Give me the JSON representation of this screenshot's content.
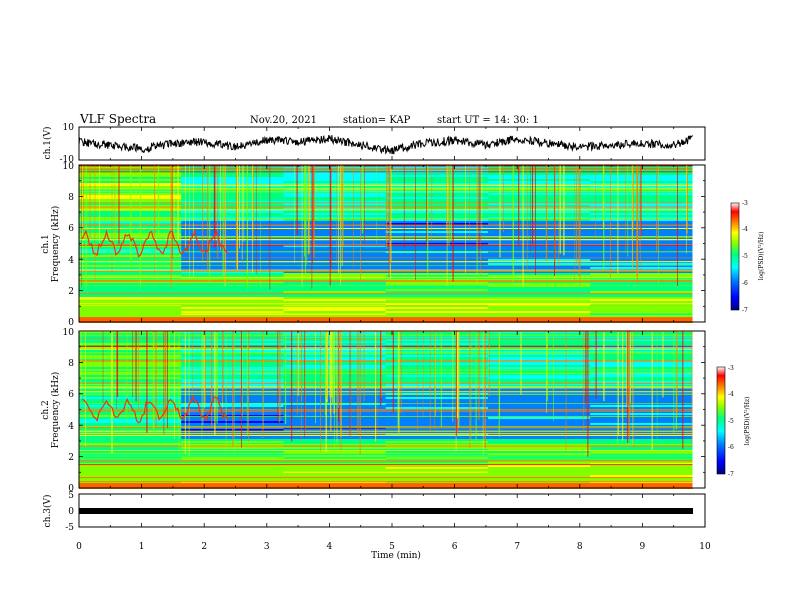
{
  "header": {
    "title": "VLF Spectra",
    "date": "Nov.20, 2021",
    "station": "station= KAP",
    "start_ut": "start  UT =   14: 30: 1"
  },
  "colors": {
    "colormap": [
      "#000080",
      "#0000ff",
      "#0080ff",
      "#00ffff",
      "#00ff80",
      "#80ff00",
      "#ffff00",
      "#ff8000",
      "#ff0000",
      "#ffffff"
    ],
    "trace": "#000000"
  },
  "chart_data": [
    {
      "type": "line",
      "name": "ch1-waveform",
      "ylabel": "ch.1(V)",
      "ylim": [
        -10,
        10
      ],
      "yticks": [
        "10",
        "-10"
      ],
      "xlim": [
        0,
        10
      ],
      "x": [
        0,
        0.5,
        1,
        1.5,
        2,
        2.5,
        3,
        3.5,
        4,
        4.5,
        5,
        5.5,
        6,
        6.5,
        7,
        7.5,
        8,
        8.5,
        9,
        9.5,
        9.8
      ],
      "values": [
        1,
        -1,
        -3,
        0,
        1,
        -2,
        2,
        1,
        3,
        -1,
        -4,
        0,
        2,
        -1,
        3,
        0,
        -2,
        -1,
        0,
        -1,
        3
      ]
    },
    {
      "type": "heatmap",
      "name": "ch1-spectrogram",
      "ylabel": "ch.1",
      "ylabel2": "Frequency (kHz)",
      "ylim": [
        0,
        10
      ],
      "yticks": [
        "0",
        "2",
        "4",
        "6",
        "8",
        "10"
      ],
      "xlim": [
        0,
        10
      ],
      "colorbar": {
        "label": "log(PSD)(V²/Hz)",
        "range": [
          -7,
          -3
        ],
        "ticks": [
          "-3",
          "-4",
          "-5",
          "-6",
          "-7"
        ]
      }
    },
    {
      "type": "heatmap",
      "name": "ch2-spectrogram",
      "ylabel": "ch.2",
      "ylabel2": "Frequency (kHz)",
      "ylim": [
        0,
        10
      ],
      "yticks": [
        "0",
        "2",
        "4",
        "6",
        "8",
        "10"
      ],
      "xlim": [
        0,
        10
      ],
      "colorbar": {
        "label": "log(PSD)(V²/Hz)",
        "range": [
          -7,
          -3
        ],
        "ticks": [
          "-3",
          "-4",
          "-5",
          "-6",
          "-7"
        ]
      }
    },
    {
      "type": "line",
      "name": "ch3-waveform",
      "ylabel": "ch.3(V)",
      "ylim": [
        -5,
        5
      ],
      "yticks": [
        "5",
        "0",
        "-5"
      ],
      "xlim": [
        0,
        10
      ],
      "x": [
        0,
        9.8
      ],
      "values": [
        0,
        0
      ]
    }
  ],
  "xaxis": {
    "label": "Time  (min)",
    "ticks": [
      "0",
      "1",
      "2",
      "3",
      "4",
      "5",
      "6",
      "7",
      "8",
      "9",
      "10"
    ]
  }
}
